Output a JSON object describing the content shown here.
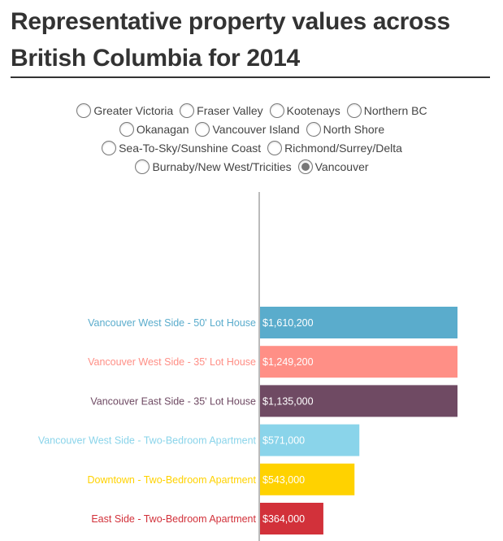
{
  "title": "Representative property values across British Columbia for 2014",
  "regions": {
    "rows": [
      [
        {
          "label": "Greater Victoria",
          "checked": false
        },
        {
          "label": "Fraser Valley",
          "checked": false
        },
        {
          "label": "Kootenays",
          "checked": false
        },
        {
          "label": "Northern BC",
          "checked": false
        }
      ],
      [
        {
          "label": "Okanagan",
          "checked": false
        },
        {
          "label": "Vancouver Island",
          "checked": false
        },
        {
          "label": "North Shore",
          "checked": false
        }
      ],
      [
        {
          "label": "Sea-To-Sky/Sunshine Coast",
          "checked": false
        },
        {
          "label": "Richmond/Surrey/Delta",
          "checked": false
        }
      ],
      [
        {
          "label": "Burnaby/New West/Tricities",
          "checked": false
        },
        {
          "label": "Vancouver",
          "checked": true
        }
      ]
    ]
  },
  "chart_data": {
    "type": "bar",
    "orientation": "horizontal",
    "categories": [
      "Vancouver West Side - 50' Lot House",
      "Vancouver West Side - 35' Lot House",
      "Vancouver East Side - 35' Lot House",
      "Vancouver West Side - Two-Bedroom Apartment",
      "Downtown - Two-Bedroom Apartment",
      "East Side - Two-Bedroom Apartment"
    ],
    "values": [
      1610200,
      1249200,
      1135000,
      571000,
      543000,
      364000
    ],
    "value_labels": [
      "$1,610,200",
      "$1,249,200",
      "$1,135,000",
      "$571,000",
      "$543,000",
      "$364,000"
    ],
    "colors": [
      "#5aaccc",
      "#ff8f86",
      "#6f4a63",
      "#8ad4ea",
      "#ffd200",
      "#d2313a"
    ],
    "xlim": [
      0,
      1135000
    ],
    "grid": false
  }
}
